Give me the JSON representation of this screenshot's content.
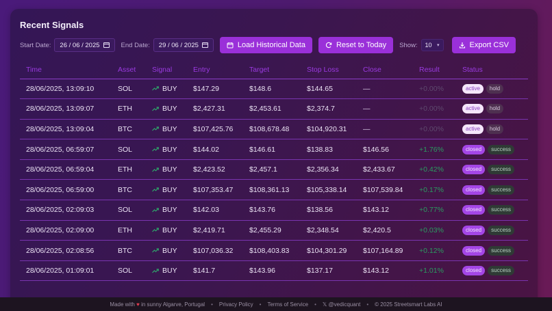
{
  "card": {
    "title": "Recent Signals"
  },
  "toolbar": {
    "start_label": "Start Date:",
    "start_value": "26 / 06 / 2025",
    "end_label": "End Date:",
    "end_value": "29 / 06 / 2025",
    "load_label": "Load Historical Data",
    "reset_label": "Reset to Today",
    "show_label": "Show:",
    "show_value": "10",
    "export_label": "Export CSV"
  },
  "table": {
    "headers": [
      "Time",
      "Asset",
      "Signal",
      "Entry",
      "Target",
      "Stop Loss",
      "Close",
      "Result",
      "Status"
    ],
    "rows": [
      {
        "time": "28/06/2025, 13:09:10",
        "asset": "SOL",
        "signal": "BUY",
        "entry": "$147.29",
        "target": "$148.6",
        "stop": "$144.65",
        "close": "—",
        "result": "+0.00%",
        "status": "active",
        "outcome": "hold"
      },
      {
        "time": "28/06/2025, 13:09:07",
        "asset": "ETH",
        "signal": "BUY",
        "entry": "$2,427.31",
        "target": "$2,453.61",
        "stop": "$2,374.7",
        "close": "—",
        "result": "+0.00%",
        "status": "active",
        "outcome": "hold"
      },
      {
        "time": "28/06/2025, 13:09:04",
        "asset": "BTC",
        "signal": "BUY",
        "entry": "$107,425.76",
        "target": "$108,678.48",
        "stop": "$104,920.31",
        "close": "—",
        "result": "+0.00%",
        "status": "active",
        "outcome": "hold"
      },
      {
        "time": "28/06/2025, 06:59:07",
        "asset": "SOL",
        "signal": "BUY",
        "entry": "$144.02",
        "target": "$146.61",
        "stop": "$138.83",
        "close": "$146.56",
        "result": "+1.76%",
        "status": "closed",
        "outcome": "success"
      },
      {
        "time": "28/06/2025, 06:59:04",
        "asset": "ETH",
        "signal": "BUY",
        "entry": "$2,423.52",
        "target": "$2,457.1",
        "stop": "$2,356.34",
        "close": "$2,433.67",
        "result": "+0.42%",
        "status": "closed",
        "outcome": "success"
      },
      {
        "time": "28/06/2025, 06:59:00",
        "asset": "BTC",
        "signal": "BUY",
        "entry": "$107,353.47",
        "target": "$108,361.13",
        "stop": "$105,338.14",
        "close": "$107,539.84",
        "result": "+0.17%",
        "status": "closed",
        "outcome": "success"
      },
      {
        "time": "28/06/2025, 02:09:03",
        "asset": "SOL",
        "signal": "BUY",
        "entry": "$142.03",
        "target": "$143.76",
        "stop": "$138.56",
        "close": "$143.12",
        "result": "+0.77%",
        "status": "closed",
        "outcome": "success"
      },
      {
        "time": "28/06/2025, 02:09:00",
        "asset": "ETH",
        "signal": "BUY",
        "entry": "$2,419.71",
        "target": "$2,455.29",
        "stop": "$2,348.54",
        "close": "$2,420.5",
        "result": "+0.03%",
        "status": "closed",
        "outcome": "success"
      },
      {
        "time": "28/06/2025, 02:08:56",
        "asset": "BTC",
        "signal": "BUY",
        "entry": "$107,036.32",
        "target": "$108,403.83",
        "stop": "$104,301.29",
        "close": "$107,164.89",
        "result": "+0.12%",
        "status": "closed",
        "outcome": "success"
      },
      {
        "time": "28/06/2025, 01:09:01",
        "asset": "SOL",
        "signal": "BUY",
        "entry": "$141.7",
        "target": "$143.96",
        "stop": "$137.17",
        "close": "$143.12",
        "result": "+1.01%",
        "status": "closed",
        "outcome": "success"
      }
    ]
  },
  "footer": {
    "made_prefix": "Made with",
    "heart": "♥",
    "made_suffix": "in sunny Algarve, Portugal",
    "privacy": "Privacy Policy",
    "terms": "Terms of Service",
    "twitter": "𝕏 @vedicquant",
    "copyright": "© 2025 Streetsmart Labs AI",
    "separator": "•"
  },
  "colors": {
    "accent": "#9a30d9",
    "positive": "#2a9d60",
    "header_text": "#9a3ae0"
  }
}
